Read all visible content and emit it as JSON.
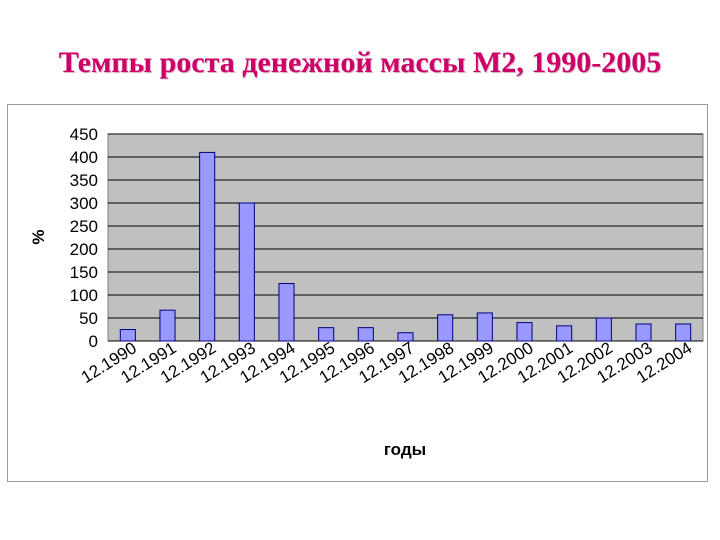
{
  "slide": {
    "title": "Темпы роста денежной массы М2, 1990-2005"
  },
  "colors": {
    "title": "#cc0066",
    "plot_bg": "#c0c0c0",
    "bar_fill": "#9999ff",
    "bar_stroke": "#000080",
    "grid": "#000000"
  },
  "chart_data": {
    "type": "bar",
    "title": "",
    "xlabel": "годы",
    "ylabel": "%",
    "ylim": [
      0,
      450
    ],
    "yticks": [
      0,
      50,
      100,
      150,
      200,
      250,
      300,
      350,
      400,
      450
    ],
    "grid": true,
    "categories": [
      "12.1990",
      "12.1991",
      "12.1992",
      "12.1993",
      "12.1994",
      "12.1995",
      "12.1996",
      "12.1997",
      "12.1998",
      "12.1999",
      "12.2000",
      "12.2001",
      "12.2002",
      "12.2003",
      "12.2004"
    ],
    "values": [
      25,
      67,
      410,
      300,
      125,
      29,
      29,
      18,
      57,
      61,
      40,
      33,
      50,
      37,
      37
    ]
  }
}
